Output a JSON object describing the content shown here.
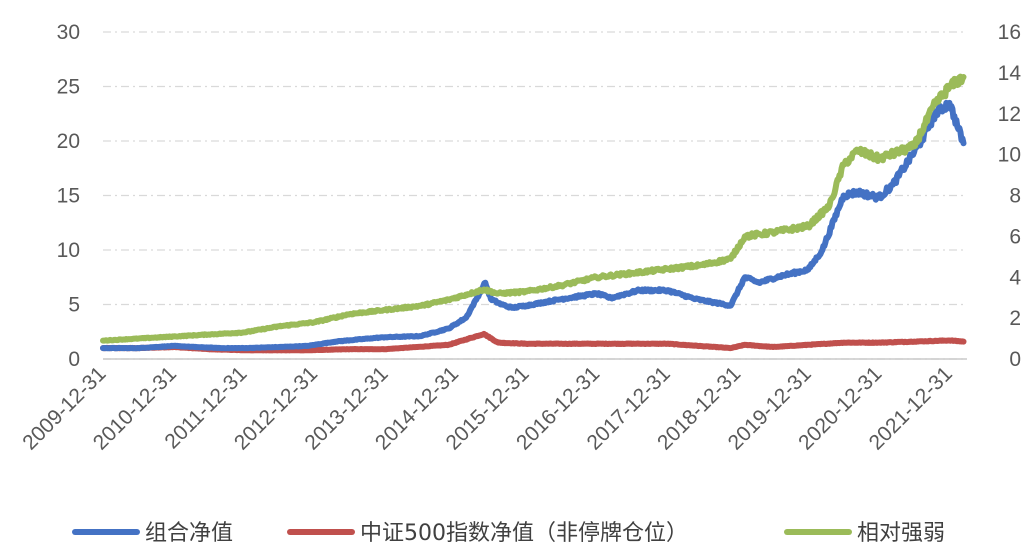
{
  "chart_data": {
    "type": "line",
    "title": "",
    "xlabel": "",
    "ylabel": "",
    "ylim_left": [
      0,
      30
    ],
    "ylim_right": [
      0,
      16
    ],
    "yticks_left": [
      "0",
      "5",
      "10",
      "15",
      "20",
      "25",
      "30"
    ],
    "yticks_right": [
      "0",
      "2",
      "4",
      "6",
      "8",
      "10",
      "12",
      "14",
      "16"
    ],
    "xticks": [
      "2009-12-31",
      "2010-12-31",
      "2011-12-31",
      "2012-12-31",
      "2013-12-31",
      "2014-12-31",
      "2015-12-31",
      "2016-12-31",
      "2017-12-31",
      "2018-12-31",
      "2019-12-31",
      "2020-12-31",
      "2021-12-31"
    ],
    "grid": "horizontal-dashed",
    "legend_position": "bottom",
    "series": [
      {
        "name": "组合净值",
        "axis": "left",
        "color": "#4472C4",
        "x": [
          2010.0,
          2010.5,
          2011.0,
          2011.3,
          2011.7,
          2012.0,
          2012.5,
          2012.9,
          2013.3,
          2013.8,
          2014.0,
          2014.5,
          2014.9,
          2015.15,
          2015.42,
          2015.5,
          2015.65,
          2015.8,
          2016.0,
          2016.5,
          2017.0,
          2017.2,
          2017.6,
          2018.0,
          2018.4,
          2018.9,
          2019.1,
          2019.3,
          2019.6,
          2020.0,
          2020.2,
          2020.5,
          2020.7,
          2021.0,
          2021.2,
          2021.6,
          2021.8,
          2022.0,
          2022.2
        ],
        "values": [
          1.0,
          1.0,
          1.2,
          1.1,
          1.0,
          1.0,
          1.1,
          1.2,
          1.6,
          1.9,
          2.0,
          2.1,
          2.8,
          3.8,
          7.0,
          5.5,
          5.0,
          4.7,
          4.9,
          5.5,
          6.0,
          5.6,
          6.3,
          6.3,
          5.5,
          4.9,
          7.5,
          7.0,
          7.6,
          8.2,
          10.0,
          15.0,
          15.3,
          14.8,
          16.0,
          20.0,
          22.5,
          23.5,
          19.8
        ]
      },
      {
        "name": "中证500指数净值（非停牌仓位）",
        "axis": "left",
        "color": "#C0504D",
        "x": [
          2010.0,
          2010.5,
          2011.0,
          2011.5,
          2012.0,
          2012.9,
          2013.5,
          2014.0,
          2014.9,
          2015.4,
          2015.6,
          2016.0,
          2017.0,
          2018.0,
          2018.9,
          2019.1,
          2019.5,
          2020.0,
          2020.5,
          2021.0,
          2021.5,
          2022.0,
          2022.2
        ],
        "values": [
          1.0,
          1.0,
          1.1,
          0.9,
          0.8,
          0.8,
          0.9,
          0.9,
          1.3,
          2.3,
          1.5,
          1.4,
          1.4,
          1.4,
          1.0,
          1.3,
          1.1,
          1.3,
          1.5,
          1.5,
          1.6,
          1.7,
          1.6
        ]
      },
      {
        "name": "相对强弱",
        "axis": "right",
        "color": "#9BBB59",
        "x": [
          2010.0,
          2010.5,
          2011.0,
          2011.5,
          2012.0,
          2012.5,
          2013.0,
          2013.5,
          2014.0,
          2014.5,
          2014.9,
          2015.4,
          2015.6,
          2016.0,
          2016.5,
          2017.0,
          2017.5,
          2018.0,
          2018.5,
          2018.9,
          2019.1,
          2019.5,
          2020.0,
          2020.3,
          2020.5,
          2020.7,
          2021.0,
          2021.5,
          2021.8,
          2022.0,
          2022.2
        ],
        "values": [
          0.9,
          1.0,
          1.1,
          1.2,
          1.3,
          1.6,
          1.8,
          2.2,
          2.4,
          2.6,
          2.9,
          3.4,
          3.2,
          3.3,
          3.6,
          4.0,
          4.2,
          4.4,
          4.6,
          4.9,
          6.0,
          6.2,
          6.5,
          7.5,
          9.5,
          10.2,
          9.8,
          10.4,
          12.5,
          13.3,
          13.8
        ]
      }
    ]
  }
}
